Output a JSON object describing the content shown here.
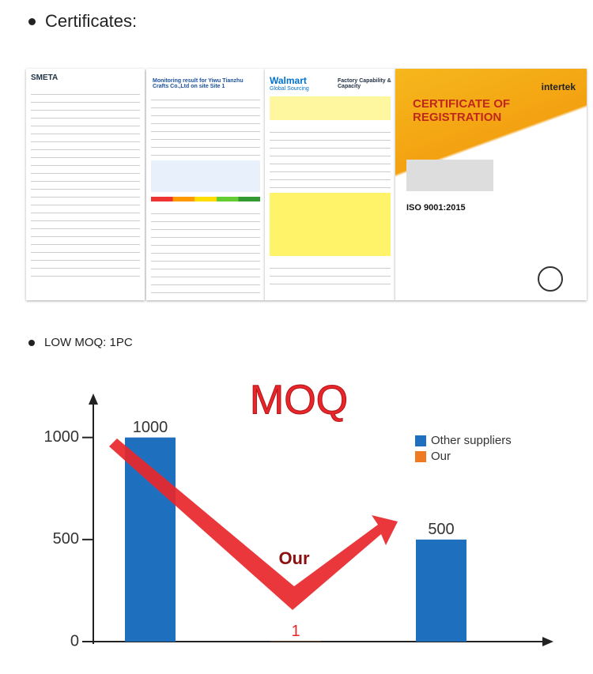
{
  "heading": "Certificates:",
  "certificates": {
    "smeta": "SMETA",
    "monitoring": "Monitoring result for Yiwu Tianzhu Crafts Co.,Ltd on site Site 1",
    "walmart_brand": "Walmart",
    "walmart_sub": "Global Sourcing",
    "walmart_title": "Factory Capability & Capacity",
    "intertek_brand": "intertek",
    "intertek_title": "CERTIFICATE OF REGISTRATION",
    "intertek_standard": "ISO 9001:2015"
  },
  "moq_heading": "LOW MOQ: 1PC",
  "chart_data": {
    "type": "bar",
    "title": "MOQ",
    "categories": [
      null,
      null,
      null
    ],
    "series": [
      {
        "name": "Other suppliers",
        "color": "#1f6fbf",
        "values": [
          1000,
          null,
          500
        ]
      },
      {
        "name": "Our",
        "color": "#f07a22",
        "values": [
          null,
          1,
          null
        ]
      }
    ],
    "annotation": "Our",
    "ylim": [
      0,
      1200
    ],
    "yticks": [
      0,
      500,
      1000
    ],
    "legend": "upper right"
  }
}
